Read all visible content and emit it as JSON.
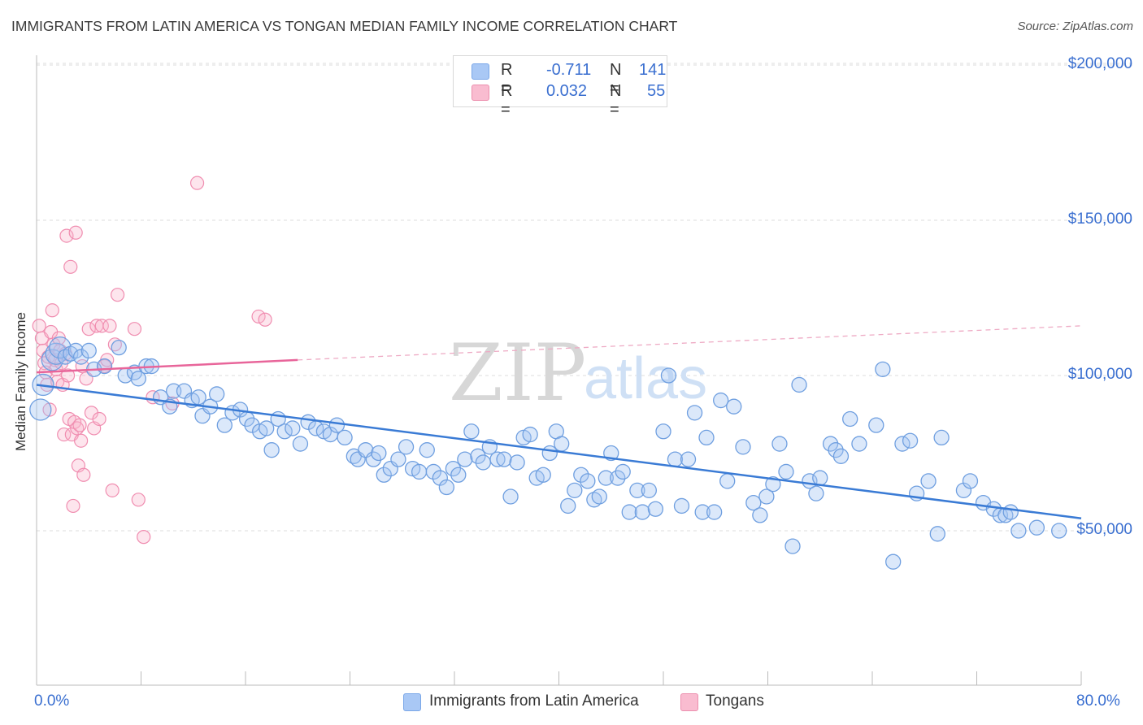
{
  "title": "IMMIGRANTS FROM LATIN AMERICA VS TONGAN MEDIAN FAMILY INCOME CORRELATION CHART",
  "source": "Source: ZipAtlas.com",
  "watermark": {
    "zip": "ZIP",
    "atlas": "atlas"
  },
  "legend": {
    "r_label": "R =",
    "n_label": "N =",
    "series": [
      {
        "r": "-0.711",
        "n": "141",
        "color": "#a9c8f5",
        "border": "#7aa7e8"
      },
      {
        "r": "0.032",
        "n": "55",
        "color": "#f9bcd0",
        "border": "#ec8fae"
      }
    ]
  },
  "bottom_legend": [
    "Immigrants from Latin America",
    "Tongans"
  ],
  "x_tick_labels": {
    "min": "0.0%",
    "max": "80.0%"
  },
  "chart_data": {
    "type": "scatter",
    "title": "IMMIGRANTS FROM LATIN AMERICA VS TONGAN MEDIAN FAMILY INCOME CORRELATION CHART",
    "xlabel": "",
    "ylabel": "Median Family Income",
    "xlim": [
      0,
      80
    ],
    "ylim": [
      0,
      205000
    ],
    "y_ticks": [
      50000,
      100000,
      150000,
      200000
    ],
    "y_tick_labels": [
      "$50,000",
      "$100,000",
      "$150,000",
      "$200,000"
    ],
    "grid": true,
    "colors": {
      "blue": "#3a7bd5",
      "pink": "#e8659a"
    },
    "series": [
      {
        "name": "Immigrants from Latin America",
        "trend": {
          "x": [
            0,
            80
          ],
          "y": [
            97000,
            54000
          ]
        },
        "points": [
          [
            0.3,
            89000
          ],
          [
            0.5,
            97000
          ],
          [
            1.2,
            105000
          ],
          [
            1.5,
            107000
          ],
          [
            1.8,
            109000
          ],
          [
            2.2,
            106000
          ],
          [
            2.6,
            107000
          ],
          [
            3.0,
            108000
          ],
          [
            3.4,
            106000
          ],
          [
            4.0,
            108000
          ],
          [
            4.4,
            102000
          ],
          [
            5.2,
            103000
          ],
          [
            6.3,
            109000
          ],
          [
            6.8,
            100000
          ],
          [
            7.5,
            101000
          ],
          [
            7.8,
            99000
          ],
          [
            8.4,
            103000
          ],
          [
            8.8,
            103000
          ],
          [
            9.5,
            93000
          ],
          [
            10.2,
            90000
          ],
          [
            10.5,
            95000
          ],
          [
            11.3,
            95000
          ],
          [
            11.9,
            92000
          ],
          [
            12.4,
            93000
          ],
          [
            12.7,
            87000
          ],
          [
            13.3,
            90000
          ],
          [
            13.8,
            94000
          ],
          [
            14.4,
            84000
          ],
          [
            15.0,
            88000
          ],
          [
            15.6,
            89000
          ],
          [
            16.1,
            86000
          ],
          [
            16.5,
            84000
          ],
          [
            17.1,
            82000
          ],
          [
            17.6,
            83000
          ],
          [
            18.0,
            76000
          ],
          [
            18.5,
            86000
          ],
          [
            19.0,
            82000
          ],
          [
            19.6,
            83000
          ],
          [
            20.2,
            78000
          ],
          [
            20.8,
            85000
          ],
          [
            21.4,
            83000
          ],
          [
            22.0,
            82000
          ],
          [
            22.5,
            81000
          ],
          [
            23.0,
            84000
          ],
          [
            23.6,
            80000
          ],
          [
            24.3,
            74000
          ],
          [
            24.6,
            73000
          ],
          [
            25.2,
            76000
          ],
          [
            25.8,
            73000
          ],
          [
            26.2,
            75000
          ],
          [
            26.6,
            68000
          ],
          [
            27.1,
            70000
          ],
          [
            27.7,
            73000
          ],
          [
            28.3,
            77000
          ],
          [
            28.8,
            70000
          ],
          [
            29.3,
            69000
          ],
          [
            29.9,
            76000
          ],
          [
            30.4,
            69000
          ],
          [
            30.9,
            67000
          ],
          [
            31.4,
            64000
          ],
          [
            31.9,
            70000
          ],
          [
            32.3,
            68000
          ],
          [
            32.8,
            73000
          ],
          [
            33.3,
            82000
          ],
          [
            33.8,
            74000
          ],
          [
            34.2,
            72000
          ],
          [
            34.7,
            77000
          ],
          [
            35.3,
            73000
          ],
          [
            35.8,
            73000
          ],
          [
            36.3,
            61000
          ],
          [
            36.8,
            72000
          ],
          [
            37.3,
            80000
          ],
          [
            37.8,
            81000
          ],
          [
            38.3,
            67000
          ],
          [
            38.8,
            68000
          ],
          [
            39.3,
            75000
          ],
          [
            39.8,
            82000
          ],
          [
            40.2,
            78000
          ],
          [
            40.7,
            58000
          ],
          [
            41.2,
            63000
          ],
          [
            41.7,
            68000
          ],
          [
            42.2,
            66000
          ],
          [
            42.7,
            60000
          ],
          [
            43.1,
            61000
          ],
          [
            43.6,
            67000
          ],
          [
            44.0,
            75000
          ],
          [
            44.5,
            67000
          ],
          [
            44.9,
            69000
          ],
          [
            45.4,
            56000
          ],
          [
            46.0,
            63000
          ],
          [
            46.4,
            56000
          ],
          [
            46.9,
            63000
          ],
          [
            47.4,
            57000
          ],
          [
            48.0,
            82000
          ],
          [
            48.4,
            100000
          ],
          [
            48.9,
            73000
          ],
          [
            49.4,
            58000
          ],
          [
            49.9,
            73000
          ],
          [
            50.4,
            88000
          ],
          [
            51.0,
            56000
          ],
          [
            51.3,
            80000
          ],
          [
            51.9,
            56000
          ],
          [
            52.4,
            92000
          ],
          [
            52.9,
            66000
          ],
          [
            53.4,
            90000
          ],
          [
            54.1,
            77000
          ],
          [
            54.9,
            59000
          ],
          [
            55.4,
            55000
          ],
          [
            55.9,
            61000
          ],
          [
            56.4,
            65000
          ],
          [
            56.9,
            78000
          ],
          [
            57.4,
            69000
          ],
          [
            57.9,
            45000
          ],
          [
            58.4,
            97000
          ],
          [
            59.2,
            66000
          ],
          [
            59.7,
            62000
          ],
          [
            60.0,
            67000
          ],
          [
            60.8,
            78000
          ],
          [
            61.2,
            76000
          ],
          [
            61.6,
            74000
          ],
          [
            62.3,
            86000
          ],
          [
            63.0,
            78000
          ],
          [
            64.3,
            84000
          ],
          [
            64.8,
            102000
          ],
          [
            65.6,
            40000
          ],
          [
            66.3,
            78000
          ],
          [
            66.9,
            79000
          ],
          [
            67.4,
            62000
          ],
          [
            68.3,
            66000
          ],
          [
            69.0,
            49000
          ],
          [
            69.3,
            80000
          ],
          [
            71.0,
            63000
          ],
          [
            71.5,
            66000
          ],
          [
            72.5,
            59000
          ],
          [
            73.3,
            57000
          ],
          [
            73.8,
            55000
          ],
          [
            74.2,
            55000
          ],
          [
            74.6,
            56000
          ],
          [
            75.2,
            50000
          ],
          [
            76.6,
            51000
          ],
          [
            78.3,
            50000
          ]
        ]
      },
      {
        "name": "Tongans",
        "trend": {
          "x": [
            0,
            20
          ],
          "y": [
            101000,
            105000
          ],
          "dashed_to": [
            80,
            116000
          ]
        },
        "points": [
          [
            0.2,
            116000
          ],
          [
            0.4,
            112000
          ],
          [
            0.5,
            108000
          ],
          [
            0.6,
            104000
          ],
          [
            0.7,
            101000
          ],
          [
            0.8,
            97000
          ],
          [
            0.9,
            106000
          ],
          [
            1.0,
            89000
          ],
          [
            1.1,
            114000
          ],
          [
            1.2,
            121000
          ],
          [
            1.3,
            110000
          ],
          [
            1.4,
            105000
          ],
          [
            1.5,
            102000
          ],
          [
            1.6,
            98000
          ],
          [
            1.7,
            112000
          ],
          [
            1.8,
            108000
          ],
          [
            1.9,
            104000
          ],
          [
            2.0,
            97000
          ],
          [
            2.1,
            81000
          ],
          [
            2.2,
            107000
          ],
          [
            2.3,
            145000
          ],
          [
            2.4,
            100000
          ],
          [
            2.5,
            86000
          ],
          [
            2.6,
            135000
          ],
          [
            2.7,
            81000
          ],
          [
            2.8,
            58000
          ],
          [
            2.9,
            85000
          ],
          [
            3.0,
            146000
          ],
          [
            3.1,
            83000
          ],
          [
            3.2,
            71000
          ],
          [
            3.3,
            84000
          ],
          [
            3.4,
            79000
          ],
          [
            3.5,
            103000
          ],
          [
            3.6,
            68000
          ],
          [
            3.8,
            99000
          ],
          [
            4.0,
            115000
          ],
          [
            4.2,
            88000
          ],
          [
            4.4,
            83000
          ],
          [
            4.6,
            116000
          ],
          [
            4.8,
            86000
          ],
          [
            5.0,
            116000
          ],
          [
            5.2,
            103000
          ],
          [
            5.4,
            105000
          ],
          [
            5.6,
            116000
          ],
          [
            5.8,
            63000
          ],
          [
            6.0,
            110000
          ],
          [
            6.2,
            126000
          ],
          [
            7.5,
            115000
          ],
          [
            7.8,
            60000
          ],
          [
            8.2,
            48000
          ],
          [
            8.9,
            93000
          ],
          [
            10.4,
            91000
          ],
          [
            12.3,
            162000
          ],
          [
            17.0,
            119000
          ],
          [
            17.5,
            118000
          ]
        ]
      }
    ]
  }
}
